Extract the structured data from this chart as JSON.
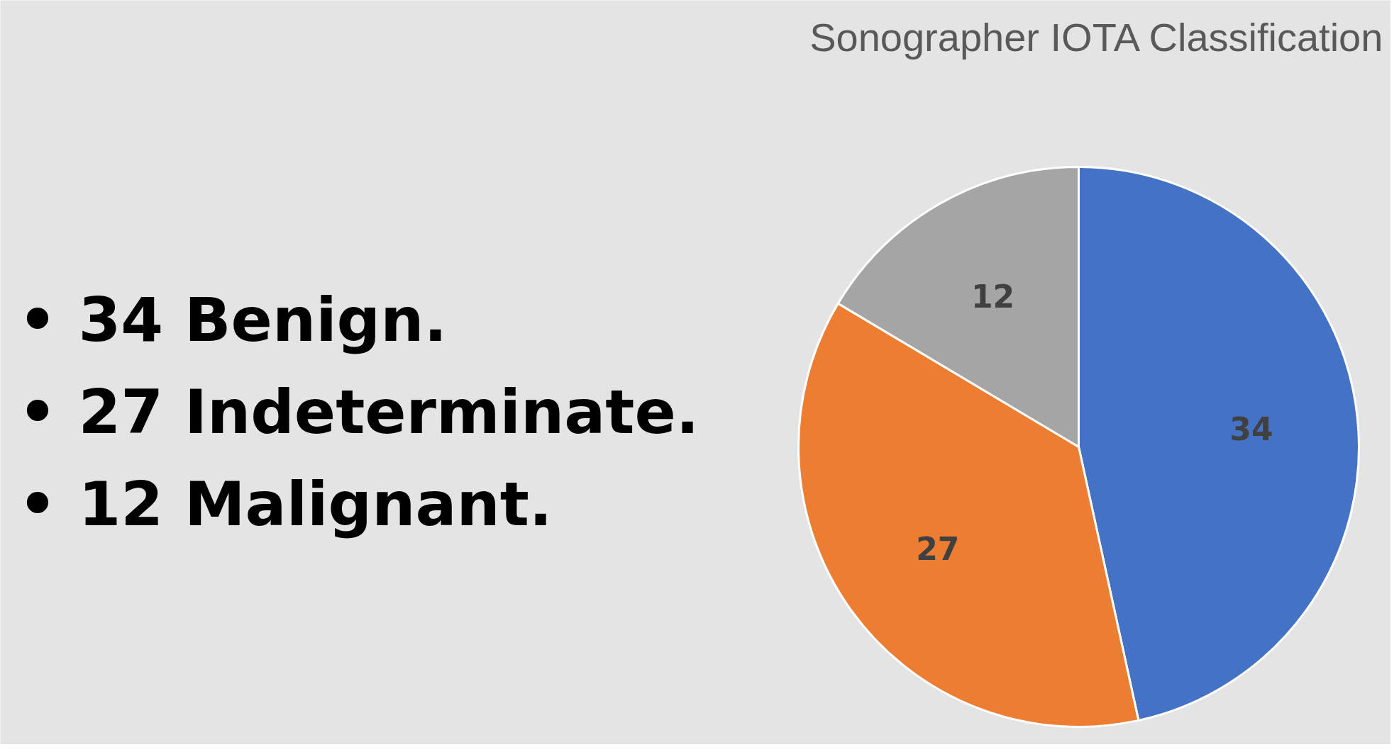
{
  "chart_data": {
    "type": "pie",
    "title": "Sonographer IOTA Classification",
    "categories": [
      null,
      null,
      null
    ],
    "values": [
      34,
      27,
      12
    ],
    "colors": [
      "#4472c4",
      "#ed7d31",
      "#a5a5a5"
    ],
    "data_labels": true,
    "annotations": [
      "• 34 Benign.",
      "• 27 Indeterminate.",
      "• 12 Malignant."
    ]
  }
}
